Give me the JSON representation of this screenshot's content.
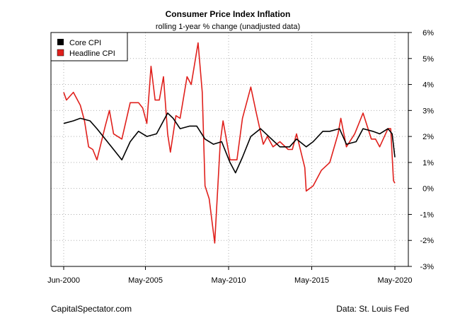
{
  "chart_data": {
    "type": "line",
    "title": "Consumer Price Index Inflation",
    "subtitle": "rolling 1-year % change (unadjusted data)",
    "x_ticks": [
      "Jun-2000",
      "May-2005",
      "May-2010",
      "May-2015",
      "May-2020"
    ],
    "y_ticks": [
      "6%",
      "5%",
      "4%",
      "3%",
      "2%",
      "1%",
      "0%",
      "-1%",
      "-2%",
      "-3%"
    ],
    "ylim": [
      -3,
      6
    ],
    "xlim": [
      "2000-06",
      "2020-05"
    ],
    "grid": true,
    "y_axis_side": "right",
    "legend_position": "top-left",
    "series": [
      {
        "name": "Core CPI",
        "color": "#000000",
        "points": [
          [
            "2000-06",
            2.5
          ],
          [
            "2001-01",
            2.6
          ],
          [
            "2001-06",
            2.7
          ],
          [
            "2002-01",
            2.6
          ],
          [
            "2002-06",
            2.3
          ],
          [
            "2002-12",
            1.9
          ],
          [
            "2003-06",
            1.5
          ],
          [
            "2003-12",
            1.1
          ],
          [
            "2004-06",
            1.8
          ],
          [
            "2004-12",
            2.2
          ],
          [
            "2005-06",
            2.0
          ],
          [
            "2006-01",
            2.1
          ],
          [
            "2006-06",
            2.6
          ],
          [
            "2006-09",
            2.9
          ],
          [
            "2007-01",
            2.7
          ],
          [
            "2007-06",
            2.3
          ],
          [
            "2008-01",
            2.4
          ],
          [
            "2008-06",
            2.4
          ],
          [
            "2008-12",
            1.9
          ],
          [
            "2009-06",
            1.7
          ],
          [
            "2009-12",
            1.8
          ],
          [
            "2010-06",
            1.0
          ],
          [
            "2010-10",
            0.6
          ],
          [
            "2011-03",
            1.2
          ],
          [
            "2011-09",
            2.0
          ],
          [
            "2012-04",
            2.3
          ],
          [
            "2012-10",
            2.0
          ],
          [
            "2013-06",
            1.6
          ],
          [
            "2014-01",
            1.6
          ],
          [
            "2014-06",
            1.9
          ],
          [
            "2015-01",
            1.6
          ],
          [
            "2015-06",
            1.8
          ],
          [
            "2016-01",
            2.2
          ],
          [
            "2016-06",
            2.2
          ],
          [
            "2017-01",
            2.3
          ],
          [
            "2017-06",
            1.7
          ],
          [
            "2018-01",
            1.8
          ],
          [
            "2018-06",
            2.3
          ],
          [
            "2019-01",
            2.2
          ],
          [
            "2019-06",
            2.1
          ],
          [
            "2019-12",
            2.3
          ],
          [
            "2020-03",
            2.1
          ],
          [
            "2020-05",
            1.2
          ]
        ]
      },
      {
        "name": "Headline CPI",
        "color": "#e0201c",
        "points": [
          [
            "2000-06",
            3.7
          ],
          [
            "2000-08",
            3.4
          ],
          [
            "2001-01",
            3.7
          ],
          [
            "2001-06",
            3.2
          ],
          [
            "2001-09",
            2.6
          ],
          [
            "2001-12",
            1.6
          ],
          [
            "2002-03",
            1.5
          ],
          [
            "2002-06",
            1.1
          ],
          [
            "2002-12",
            2.4
          ],
          [
            "2003-03",
            3.0
          ],
          [
            "2003-06",
            2.1
          ],
          [
            "2003-12",
            1.9
          ],
          [
            "2004-06",
            3.3
          ],
          [
            "2004-12",
            3.3
          ],
          [
            "2005-03",
            3.1
          ],
          [
            "2005-06",
            2.5
          ],
          [
            "2005-09",
            4.7
          ],
          [
            "2005-12",
            3.4
          ],
          [
            "2006-03",
            3.4
          ],
          [
            "2006-06",
            4.3
          ],
          [
            "2006-09",
            2.1
          ],
          [
            "2006-11",
            1.4
          ],
          [
            "2007-03",
            2.8
          ],
          [
            "2007-06",
            2.7
          ],
          [
            "2007-11",
            4.3
          ],
          [
            "2008-02",
            4.0
          ],
          [
            "2008-07",
            5.6
          ],
          [
            "2008-10",
            3.7
          ],
          [
            "2008-12",
            0.1
          ],
          [
            "2009-03",
            -0.4
          ],
          [
            "2009-07",
            -2.1
          ],
          [
            "2009-11",
            1.8
          ],
          [
            "2010-01",
            2.6
          ],
          [
            "2010-06",
            1.1
          ],
          [
            "2010-11",
            1.1
          ],
          [
            "2011-03",
            2.7
          ],
          [
            "2011-09",
            3.9
          ],
          [
            "2012-01",
            2.9
          ],
          [
            "2012-06",
            1.7
          ],
          [
            "2012-09",
            2.0
          ],
          [
            "2013-01",
            1.6
          ],
          [
            "2013-06",
            1.8
          ],
          [
            "2013-12",
            1.5
          ],
          [
            "2014-03",
            1.5
          ],
          [
            "2014-06",
            2.1
          ],
          [
            "2014-12",
            0.8
          ],
          [
            "2015-01",
            -0.1
          ],
          [
            "2015-06",
            0.1
          ],
          [
            "2015-12",
            0.7
          ],
          [
            "2016-06",
            1.0
          ],
          [
            "2016-12",
            2.1
          ],
          [
            "2017-02",
            2.7
          ],
          [
            "2017-06",
            1.6
          ],
          [
            "2017-12",
            2.1
          ],
          [
            "2018-06",
            2.9
          ],
          [
            "2018-12",
            1.9
          ],
          [
            "2019-03",
            1.9
          ],
          [
            "2019-06",
            1.6
          ],
          [
            "2019-12",
            2.3
          ],
          [
            "2020-02",
            2.3
          ],
          [
            "2020-04",
            0.3
          ],
          [
            "2020-05",
            0.2
          ]
        ]
      }
    ]
  },
  "footer": {
    "left": "CapitalSpectator.com",
    "right": "Data: St. Louis Fed"
  }
}
